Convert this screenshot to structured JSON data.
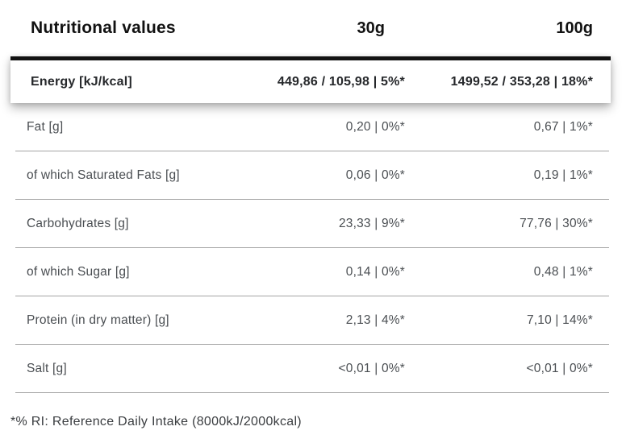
{
  "table": {
    "header": {
      "label": "Nutritional values",
      "col_30g": "30g",
      "col_100g": "100g"
    },
    "highlight_row": {
      "label": "Energy [kJ/kcal]",
      "v30": "449,86 / 105,98 | 5%*",
      "v100": "1499,52 / 353,28 | 18%*"
    },
    "rows": [
      {
        "label": "Fat [g]",
        "v30": "0,20 | 0%*",
        "v100": "0,67 | 1%*"
      },
      {
        "label": "of which Saturated Fats [g]",
        "v30": "0,06 | 0%*",
        "v100": "0,19 | 1%*"
      },
      {
        "label": "Carbohydrates [g]",
        "v30": "23,33 | 9%*",
        "v100": "77,76 | 30%*"
      },
      {
        "label": "of which Sugar [g]",
        "v30": "0,14 | 0%*",
        "v100": "0,48 | 1%*"
      },
      {
        "label": "Protein (in dry matter) [g]",
        "v30": "2,13 | 4%*",
        "v100": "7,10 | 14%*"
      },
      {
        "label": "Salt [g]",
        "v30": "<0,01 | 0%*",
        "v100": "<0,01 | 0%*"
      }
    ],
    "footnote": "*% RI: Reference Daily Intake (8000kJ/2000kcal)"
  },
  "colors": {
    "heading": "#111111",
    "body_text": "#4a4e52",
    "highlight_text": "#26282b",
    "separator": "#a5a5a5",
    "accent_bar": "#111111",
    "footnote": "#3a3d40",
    "card_bg": "#ffffff"
  }
}
